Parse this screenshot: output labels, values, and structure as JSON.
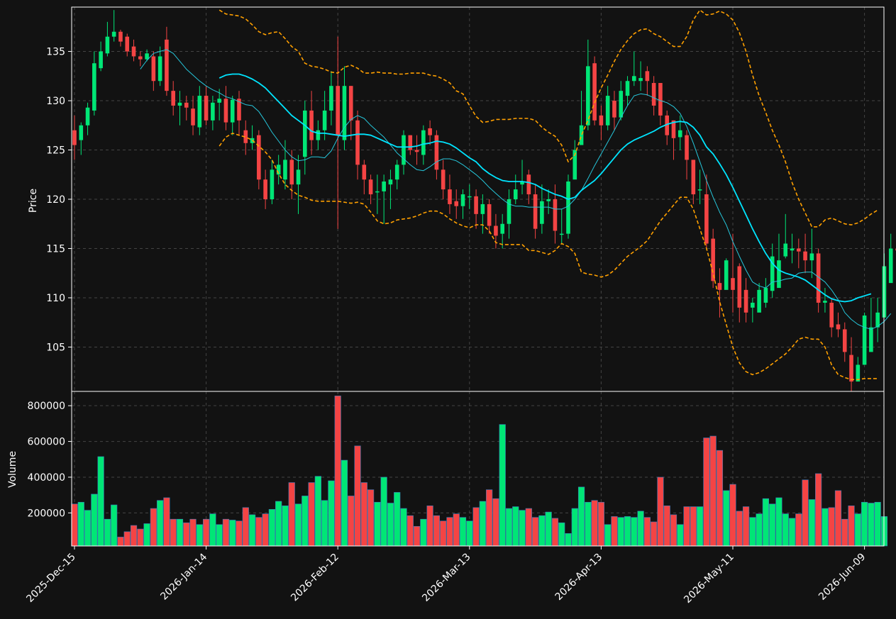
{
  "chart_data": [
    {
      "type": "candlestick",
      "panel": "price",
      "ylabel": "Price",
      "ylim": [
        100.5,
        139.5
      ],
      "yticks": [
        105,
        110,
        115,
        120,
        125,
        130,
        135
      ],
      "grid": true,
      "colors": {
        "up": "#00e676",
        "down": "#f44444",
        "sma_fast": "#26c6da",
        "sma_slow": "#00e5ff",
        "bollinger": "#ffa000",
        "grid": "#444444",
        "background": "#121212",
        "axis": "#ffffff"
      },
      "closes": [
        125.5,
        127.5,
        129.3,
        133.8,
        135.0,
        136.5,
        137.0,
        136.0,
        135.0,
        134.5,
        134.2,
        134.8,
        132.0,
        134.5,
        131.0,
        129.5,
        129.8,
        129.3,
        127.5,
        130.5,
        128.0,
        129.8,
        130.2,
        127.8,
        130.1,
        128.0,
        125.7,
        126.2,
        122.0,
        120.0,
        123.0,
        123.5,
        124.0,
        121.5,
        123.0,
        129.0,
        126.0,
        127.0,
        129.0,
        131.5,
        126.5,
        131.5,
        128.0,
        123.5,
        122.0,
        120.5,
        120.8,
        121.8,
        122.0,
        123.5,
        126.5,
        125.0,
        124.8,
        127.0,
        126.5,
        123.0,
        121.0,
        119.5,
        119.3,
        120.5,
        120.3,
        118.5,
        119.5,
        117.3,
        116.3,
        117.5,
        120.0,
        121.0,
        121.8,
        120.5,
        117.0,
        119.8,
        120.0,
        116.8,
        116.5,
        121.8,
        125.0,
        127.5,
        133.5,
        128.0,
        127.5,
        130.5,
        128.3,
        131.0,
        132.0,
        132.5,
        132.3,
        132.0,
        129.5,
        128.5,
        126.5,
        126.2,
        127.0,
        124.0,
        120.5,
        121.0,
        115.5,
        111.7,
        110.8,
        113.8,
        110.8,
        109.0,
        108.5,
        109.5,
        110.8,
        111.0,
        114.2,
        113.8,
        115.5,
        115.0,
        114.7,
        113.8,
        114.5,
        109.5,
        109.7,
        107.0,
        106.8,
        104.5,
        101.5,
        103.2,
        108.2,
        107.0,
        108.5,
        113.2,
        115.0,
        114.8
      ],
      "opens": [
        127.0,
        126.0,
        127.5,
        129.0,
        133.3,
        134.8,
        136.5,
        137.0,
        136.5,
        135.5,
        134.5,
        134.2,
        134.5,
        132.0,
        136.2,
        131.0,
        129.5,
        129.8,
        129.2,
        127.3,
        130.5,
        128.0,
        129.8,
        130.2,
        127.8,
        130.2,
        127.0,
        125.7,
        126.5,
        122.0,
        120.0,
        122.5,
        122.0,
        124.0,
        121.5,
        124.3,
        129.0,
        126.0,
        127.0,
        129.0,
        131.5,
        126.0,
        131.5,
        128.0,
        123.5,
        122.0,
        120.8,
        120.8,
        121.5,
        122.0,
        123.5,
        126.5,
        125.0,
        124.5,
        127.2,
        126.5,
        123.0,
        121.0,
        119.8,
        119.3,
        120.3,
        120.3,
        118.5,
        119.5,
        117.3,
        116.5,
        117.5,
        120.0,
        121.5,
        122.5,
        120.5,
        117.5,
        119.8,
        120.0,
        116.5,
        116.5,
        122.0,
        125.5,
        127.5,
        133.8,
        128.5,
        127.5,
        130.0,
        128.3,
        130.5,
        132.0,
        132.0,
        133.0,
        131.8,
        131.8,
        128.5,
        128.0,
        126.3,
        126.5,
        124.0,
        121.0,
        120.5,
        116.0,
        111.5,
        110.8,
        112.0,
        113.2,
        110.8,
        109.0,
        108.5,
        109.5,
        110.7,
        111.0,
        114.2,
        114.8,
        115.0,
        114.7,
        113.8,
        114.5,
        109.5,
        109.5,
        107.3,
        106.8,
        104.2,
        101.5,
        103.2,
        104.5,
        107.0,
        108.0,
        111.5,
        115.0
      ],
      "highs": [
        128.5,
        127.8,
        129.8,
        135.0,
        136.0,
        138.0,
        139.2,
        137.2,
        136.8,
        136.2,
        135.0,
        135.2,
        135.0,
        135.5,
        137.5,
        132.0,
        131.0,
        130.5,
        130.5,
        131.5,
        131.5,
        130.5,
        131.2,
        131.5,
        130.5,
        131.0,
        128.0,
        127.5,
        127.0,
        123.0,
        124.0,
        124.5,
        126.0,
        125.0,
        124.5,
        130.0,
        131.0,
        128.0,
        131.0,
        133.0,
        136.5,
        133.5,
        131.5,
        129.0,
        124.0,
        122.5,
        122.5,
        122.5,
        123.0,
        124.0,
        127.0,
        126.5,
        126.5,
        127.5,
        128.0,
        127.0,
        124.0,
        122.5,
        121.0,
        121.0,
        121.5,
        121.0,
        120.5,
        120.0,
        118.5,
        118.5,
        121.0,
        122.5,
        124.0,
        123.0,
        121.5,
        121.5,
        121.0,
        121.5,
        119.0,
        122.5,
        126.0,
        131.0,
        136.2,
        134.5,
        129.5,
        131.5,
        131.0,
        132.0,
        132.5,
        135.0,
        134.0,
        133.5,
        132.5,
        131.5,
        129.0,
        128.0,
        128.5,
        127.0,
        124.0,
        123.0,
        122.5,
        117.0,
        113.0,
        114.0,
        116.5,
        113.5,
        112.0,
        110.0,
        111.5,
        112.0,
        115.5,
        116.5,
        118.5,
        116.5,
        116.0,
        116.5,
        117.0,
        115.0,
        111.0,
        110.0,
        108.5,
        107.5,
        106.0,
        104.0,
        108.5,
        110.0,
        110.0,
        114.5,
        116.5,
        116.5
      ],
      "lows": [
        124.0,
        124.5,
        126.5,
        128.5,
        133.0,
        134.5,
        136.0,
        135.5,
        134.5,
        134.0,
        133.5,
        134.0,
        131.0,
        131.5,
        130.5,
        128.5,
        127.5,
        128.0,
        126.5,
        126.5,
        127.5,
        127.0,
        128.0,
        127.0,
        126.5,
        126.5,
        124.5,
        125.0,
        121.0,
        119.0,
        119.5,
        121.5,
        121.0,
        120.0,
        118.5,
        122.5,
        124.5,
        125.0,
        126.0,
        127.5,
        117.0,
        125.0,
        126.0,
        122.0,
        120.5,
        119.5,
        118.5,
        117.5,
        119.0,
        121.0,
        122.5,
        124.5,
        123.5,
        123.5,
        125.5,
        122.0,
        120.0,
        118.5,
        118.0,
        118.0,
        119.0,
        117.0,
        116.5,
        116.5,
        115.0,
        115.0,
        116.0,
        119.5,
        120.5,
        119.5,
        116.0,
        116.5,
        118.5,
        115.5,
        115.5,
        116.0,
        124.0,
        126.5,
        127.0,
        127.5,
        126.0,
        127.0,
        127.0,
        128.0,
        129.5,
        131.5,
        131.0,
        130.5,
        128.5,
        127.5,
        125.5,
        124.0,
        125.0,
        122.0,
        119.5,
        119.5,
        115.0,
        111.0,
        108.0,
        111.0,
        108.5,
        107.5,
        107.5,
        107.5,
        109.5,
        109.0,
        110.0,
        112.5,
        114.0,
        113.5,
        113.0,
        112.5,
        112.0,
        108.5,
        108.5,
        106.0,
        106.0,
        103.5,
        100.5,
        102.5,
        103.5,
        106.5,
        105.5,
        110.0,
        113.0,
        113.5
      ],
      "sma_fast": [
        null,
        null,
        null,
        null,
        null,
        null,
        null,
        null,
        null,
        null,
        133.2,
        134.1,
        134.8,
        135.0,
        135.2,
        134.8,
        134.0,
        133.2,
        132.6,
        132.0,
        131.5,
        131.1,
        130.8,
        130.4,
        130.2,
        129.9,
        129.6,
        129.5,
        128.9,
        127.9,
        126.8,
        125.9,
        125.0,
        124.3,
        123.9,
        124.0,
        124.3,
        124.3,
        124.2,
        124.9,
        126.2,
        127.3,
        128.1,
        128.5,
        128.2,
        127.5,
        126.9,
        126.3,
        125.5,
        124.7,
        124.1,
        123.5,
        123.0,
        122.9,
        123.3,
        123.8,
        124.1,
        124.1,
        123.9,
        123.5,
        123.0,
        122.5,
        121.9,
        121.2,
        120.6,
        120.0,
        119.5,
        119.3,
        119.3,
        119.2,
        119.2,
        119.2,
        119.2,
        119.0,
        119.0,
        119.3,
        120.0,
        120.9,
        122.1,
        123.4,
        124.6,
        125.8,
        127.0,
        128.3,
        129.5,
        130.5,
        130.7,
        130.6,
        130.3,
        130.0,
        129.8,
        129.4,
        128.7,
        127.4,
        125.7,
        123.8,
        121.9,
        120.2,
        118.7,
        117.4,
        115.7,
        114.2,
        112.8,
        111.6,
        111.2,
        111.0,
        111.6,
        111.7,
        111.9,
        112.0,
        112.5,
        112.6,
        112.6,
        112.1,
        111.6,
        110.8,
        109.8,
        108.5,
        107.8,
        107.3,
        107.0,
        106.8,
        107.1,
        107.6,
        108.4,
        null
      ],
      "sma_slow": [
        null,
        null,
        null,
        null,
        null,
        null,
        null,
        null,
        null,
        null,
        null,
        null,
        null,
        null,
        null,
        null,
        null,
        null,
        null,
        null,
        null,
        null,
        132.3,
        132.6,
        132.7,
        132.7,
        132.5,
        132.2,
        131.8,
        131.3,
        130.6,
        129.9,
        129.2,
        128.5,
        128.0,
        127.5,
        126.9,
        126.7,
        126.7,
        126.6,
        126.5,
        126.4,
        126.5,
        126.6,
        126.6,
        126.5,
        126.2,
        125.9,
        125.6,
        125.3,
        125.3,
        125.3,
        125.4,
        125.6,
        125.7,
        125.9,
        125.8,
        125.6,
        125.2,
        124.7,
        124.2,
        123.8,
        123.1,
        122.6,
        122.2,
        121.9,
        121.8,
        121.8,
        121.8,
        121.7,
        121.5,
        121.1,
        120.8,
        120.5,
        120.3,
        120.0,
        120.2,
        120.9,
        121.4,
        121.9,
        122.6,
        123.4,
        124.2,
        125.0,
        125.6,
        126.0,
        126.3,
        126.6,
        126.9,
        127.3,
        127.6,
        127.8,
        127.9,
        127.8,
        127.3,
        126.5,
        125.3,
        124.6,
        123.6,
        122.5,
        121.2,
        119.8,
        118.4,
        117.0,
        115.7,
        114.5,
        113.5,
        112.8,
        112.5,
        112.3,
        112.1,
        111.8,
        111.3,
        110.8,
        110.3,
        109.9,
        109.7,
        109.6,
        109.7,
        110.0,
        110.2,
        110.4,
        null,
        null,
        null,
        null
      ],
      "bollinger_upper": [
        null,
        null,
        null,
        null,
        null,
        null,
        null,
        null,
        null,
        null,
        null,
        null,
        null,
        null,
        null,
        null,
        null,
        null,
        null,
        null,
        null,
        null,
        139.2,
        138.8,
        138.7,
        138.6,
        138.3,
        137.7,
        137.0,
        136.7,
        136.9,
        137.0,
        136.3,
        135.5,
        135.0,
        133.8,
        133.5,
        133.4,
        133.2,
        132.9,
        132.8,
        133.4,
        133.6,
        133.3,
        132.8,
        132.8,
        132.9,
        132.8,
        132.8,
        132.7,
        132.7,
        132.8,
        132.8,
        132.8,
        132.6,
        132.5,
        132.2,
        131.8,
        131.0,
        130.7,
        129.5,
        128.4,
        127.8,
        127.9,
        128.1,
        128.1,
        128.1,
        128.2,
        128.2,
        128.2,
        128.0,
        127.3,
        126.8,
        126.4,
        125.5,
        123.8,
        124.5,
        126.5,
        128.0,
        129.8,
        131.3,
        132.6,
        134.0,
        135.2,
        136.1,
        136.8,
        137.2,
        137.3,
        136.8,
        136.5,
        136.0,
        135.5,
        135.5,
        136.5,
        138.2,
        139.2,
        138.7,
        138.8,
        139.1,
        138.8,
        138.2,
        136.9,
        135.0,
        132.6,
        130.5,
        128.8,
        127.0,
        125.5,
        123.8,
        121.7,
        120.0,
        118.6,
        117.2,
        117.2,
        117.9,
        118.1,
        117.8,
        117.5,
        117.4,
        117.6,
        118.0,
        118.5,
        118.9,
        null,
        null,
        null
      ],
      "bollinger_lower": [
        null,
        null,
        null,
        null,
        null,
        null,
        null,
        null,
        null,
        null,
        null,
        null,
        null,
        null,
        null,
        null,
        null,
        null,
        null,
        null,
        null,
        null,
        125.4,
        126.3,
        126.7,
        126.5,
        126.3,
        126.0,
        125.4,
        124.8,
        124.0,
        122.6,
        121.5,
        120.9,
        120.4,
        120.2,
        119.9,
        119.8,
        119.8,
        119.8,
        119.8,
        119.7,
        119.6,
        119.7,
        119.5,
        118.7,
        117.8,
        117.5,
        117.6,
        117.9,
        118.0,
        118.1,
        118.3,
        118.6,
        118.8,
        118.8,
        118.5,
        118.0,
        117.6,
        117.3,
        117.1,
        117.4,
        117.4,
        116.8,
        115.6,
        115.4,
        115.4,
        115.4,
        115.4,
        114.8,
        114.8,
        114.6,
        114.4,
        114.8,
        115.5,
        115.2,
        114.5,
        112.6,
        112.4,
        112.3,
        112.1,
        112.3,
        112.8,
        113.5,
        114.2,
        114.7,
        115.2,
        115.8,
        116.8,
        117.8,
        118.6,
        119.4,
        120.2,
        120.2,
        119.0,
        117.0,
        115.0,
        112.5,
        109.6,
        107.3,
        105.0,
        103.4,
        102.5,
        102.2,
        102.4,
        102.8,
        103.3,
        103.8,
        104.3,
        105.0,
        105.8,
        106.0,
        105.8,
        105.8,
        105.0,
        103.2,
        102.2,
        101.9,
        101.7,
        101.7,
        101.8,
        101.8,
        101.8,
        null,
        null,
        null
      ]
    },
    {
      "type": "bar",
      "panel": "volume",
      "ylabel": "Volume",
      "ylim": [
        15000,
        880000
      ],
      "yticks": [
        200000,
        400000,
        600000,
        800000
      ],
      "grid": true,
      "values": [
        250000,
        260000,
        215000,
        305000,
        515000,
        165000,
        245000,
        65000,
        95000,
        130000,
        110000,
        140000,
        225000,
        270000,
        285000,
        165000,
        165000,
        145000,
        165000,
        135000,
        165000,
        195000,
        135000,
        165000,
        160000,
        155000,
        230000,
        190000,
        175000,
        195000,
        220000,
        265000,
        240000,
        370000,
        250000,
        295000,
        370000,
        405000,
        270000,
        380000,
        855000,
        495000,
        295000,
        575000,
        370000,
        330000,
        260000,
        400000,
        255000,
        315000,
        225000,
        185000,
        125000,
        165000,
        240000,
        185000,
        155000,
        175000,
        195000,
        175000,
        155000,
        230000,
        265000,
        330000,
        280000,
        695000,
        225000,
        235000,
        215000,
        225000,
        175000,
        185000,
        205000,
        170000,
        145000,
        85000,
        225000,
        345000,
        260000,
        270000,
        260000,
        135000,
        180000,
        175000,
        180000,
        175000,
        210000,
        175000,
        150000,
        400000,
        240000,
        190000,
        135000,
        235000,
        235000,
        235000,
        620000,
        630000,
        550000,
        325000,
        360000,
        210000,
        235000,
        175000,
        195000,
        280000,
        250000,
        285000,
        195000,
        170000,
        195000,
        385000,
        275000,
        420000,
        225000,
        230000,
        325000,
        165000,
        240000,
        195000,
        260000,
        255000,
        260000,
        180000
      ]
    }
  ],
  "x_axis": {
    "tick_labels": [
      "2025-Dec-15",
      "2026-Jan-14",
      "2026-Feb-12",
      "2026-Mar-13",
      "2026-Apr-13",
      "2026-May-11",
      "2026-Jun-09"
    ],
    "tick_indices": [
      0,
      20,
      40,
      60,
      80,
      100,
      120
    ]
  }
}
